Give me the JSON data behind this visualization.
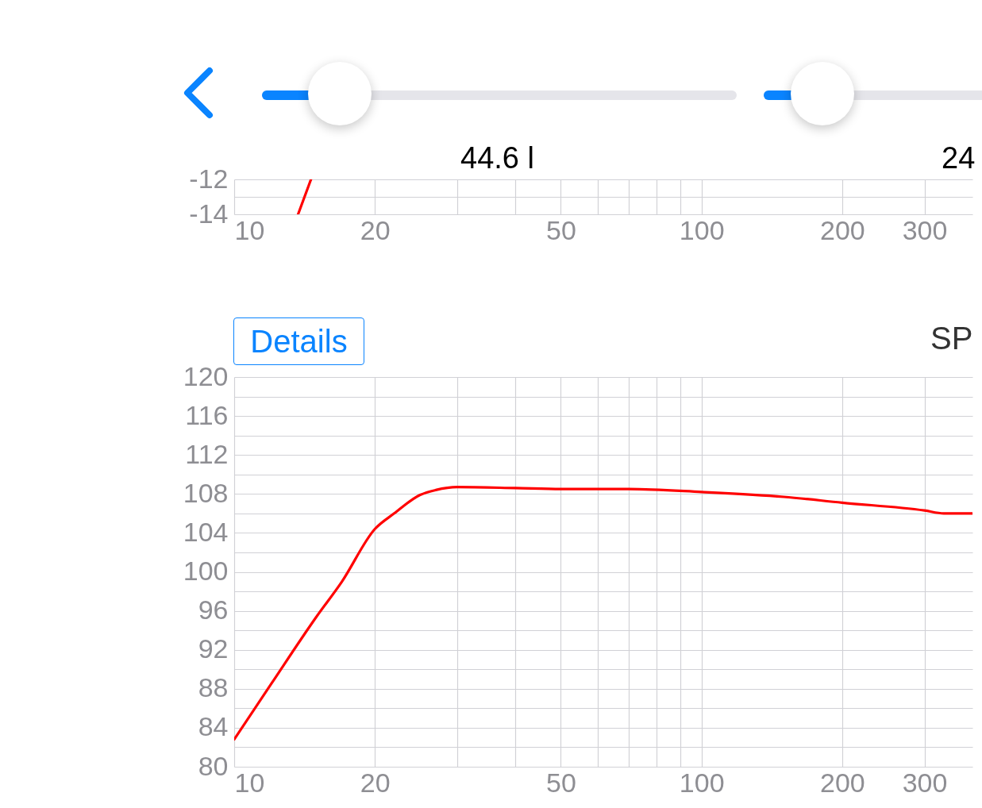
{
  "chart_data": [
    {
      "type": "line",
      "annotations": [
        "44.6 l",
        "24"
      ],
      "log": "x",
      "grid": true,
      "xlim": [
        10,
        380
      ],
      "xticks": [
        10,
        20,
        {
          "value": 30,
          "label": null
        },
        {
          "value": 40,
          "label": null
        },
        50,
        {
          "value": 60,
          "label": null
        },
        {
          "value": 70,
          "label": null
        },
        {
          "value": 80,
          "label": null
        },
        {
          "value": 90,
          "label": null
        },
        100,
        200,
        300
      ],
      "ylim": [
        -14,
        -12
      ],
      "yticks": [
        -14,
        {
          "value": -13,
          "label": null
        },
        -12
      ],
      "series": [
        {
          "color": "#ff0000",
          "x": [
            13.7,
            14.6
          ],
          "values": [
            -14,
            -12
          ]
        }
      ]
    },
    {
      "type": "line",
      "annotations": [
        "Details",
        "SP"
      ],
      "log": "x",
      "grid": true,
      "xlim": [
        10,
        380
      ],
      "xticks": [
        10,
        20,
        {
          "value": 30,
          "label": null
        },
        {
          "value": 40,
          "label": null
        },
        50,
        {
          "value": 60,
          "label": null
        },
        {
          "value": 70,
          "label": null
        },
        {
          "value": 80,
          "label": null
        },
        {
          "value": 90,
          "label": null
        },
        100,
        200,
        300
      ],
      "ylim": [
        80,
        120
      ],
      "yticks": [
        80,
        {
          "value": 82,
          "label": null
        },
        84,
        {
          "value": 86,
          "label": null
        },
        88,
        {
          "value": 90,
          "label": null
        },
        92,
        {
          "value": 94,
          "label": null
        },
        96,
        {
          "value": 98,
          "label": null
        },
        100,
        {
          "value": 102,
          "label": null
        },
        104,
        {
          "value": 106,
          "label": null
        },
        108,
        {
          "value": 110,
          "label": null
        },
        112,
        {
          "value": 114,
          "label": null
        },
        116,
        {
          "value": 118,
          "label": null
        },
        120
      ],
      "series": [
        {
          "color": "#ff0000",
          "x": [
            10,
            12,
            15,
            17,
            20,
            22,
            25,
            27,
            30,
            40,
            50,
            70,
            100,
            150,
            200,
            300,
            330,
            380
          ],
          "values": [
            82.8,
            88.5,
            95.4,
            99.0,
            104.4,
            106.0,
            107.9,
            108.4,
            108.7,
            108.6,
            108.5,
            108.5,
            108.2,
            107.7,
            107.1,
            106.3,
            106.0,
            106.0
          ]
        }
      ]
    }
  ]
}
